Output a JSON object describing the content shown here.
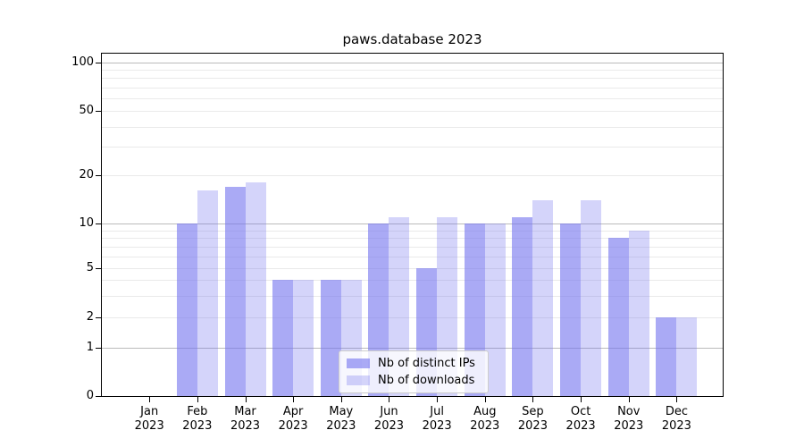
{
  "chart_data": {
    "type": "bar",
    "title": "paws.database 2023",
    "categories": [
      "Jan 2023",
      "Feb 2023",
      "Mar 2023",
      "Apr 2023",
      "May 2023",
      "Jun 2023",
      "Jul 2023",
      "Aug 2023",
      "Sep 2023",
      "Oct 2023",
      "Nov 2023",
      "Dec 2023"
    ],
    "series": [
      {
        "name": "Nb of distinct IPs",
        "color": "rgba(113,113,238,0.6)",
        "values": [
          0,
          10,
          17,
          4,
          4,
          10,
          5,
          10,
          11,
          10,
          8,
          2
        ]
      },
      {
        "name": "Nb of downloads",
        "color": "rgba(113,113,238,0.3)",
        "values": [
          0,
          16,
          18,
          4,
          4,
          11,
          11,
          10,
          14,
          14,
          9,
          2
        ]
      }
    ],
    "xlabel": "",
    "ylabel": "",
    "yaxis": {
      "scale": "symlog",
      "range": [
        0,
        100
      ],
      "ticks": [
        0,
        1,
        2,
        5,
        10,
        20,
        50,
        100
      ],
      "major_grid": [
        1,
        10,
        100
      ],
      "minor_grid": [
        2,
        3,
        4,
        5,
        6,
        7,
        8,
        9,
        20,
        30,
        40,
        50,
        60,
        70,
        80,
        90
      ]
    },
    "legend": {
      "position": "lower center"
    },
    "colors": {
      "axis": "#000000",
      "major_grid": "#bbbbbb",
      "minor_grid": "#eaeaea",
      "background": "#ffffff"
    }
  }
}
